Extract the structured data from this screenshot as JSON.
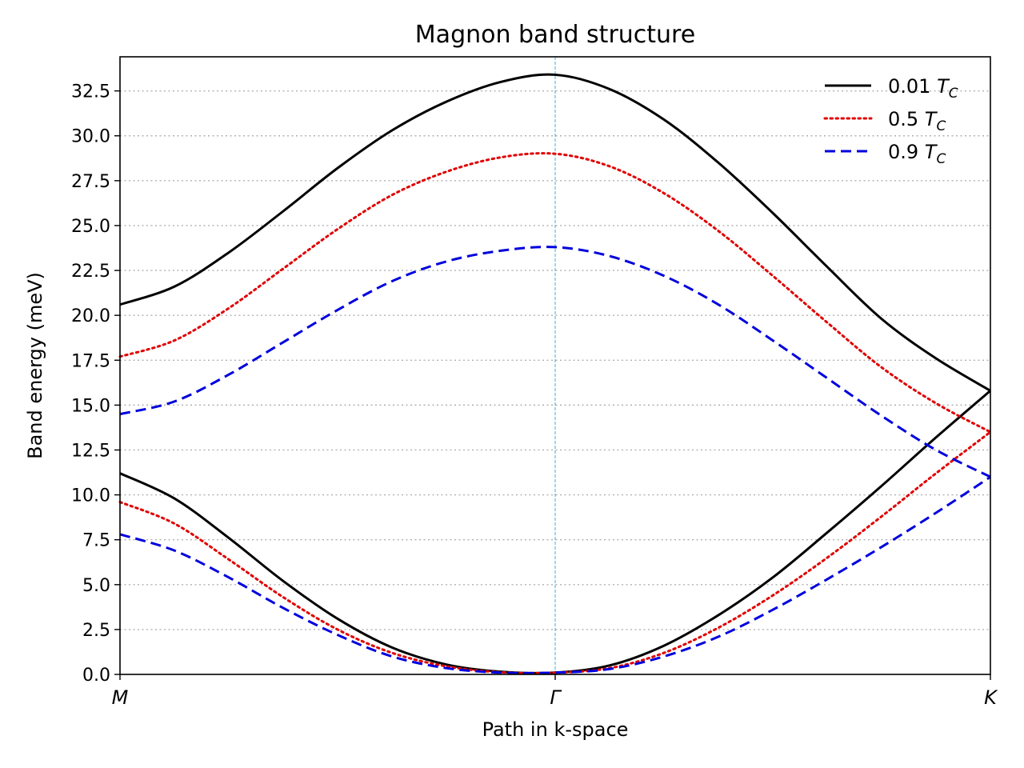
{
  "chart_data": {
    "type": "line",
    "title": "Magnon band structure",
    "xlabel": "Path in k-space",
    "ylabel": "Band energy (meV)",
    "x_ticks": [
      "M",
      "Γ",
      "K"
    ],
    "x": [
      0,
      0.0625,
      0.125,
      0.1875,
      0.25,
      0.3125,
      0.375,
      0.4375,
      0.5,
      0.5625,
      0.625,
      0.6875,
      0.75,
      0.8125,
      0.875,
      0.9375,
      1.0
    ],
    "xlim": [
      0,
      1
    ],
    "ylim": [
      0,
      34.4
    ],
    "yticks": [
      0.0,
      2.5,
      5.0,
      7.5,
      10.0,
      12.5,
      15.0,
      17.5,
      20.0,
      22.5,
      25.0,
      27.5,
      30.0,
      32.5
    ],
    "y_grid": true,
    "grid_style": "dotted",
    "vertical_marker": {
      "x": 0.5,
      "label": "Γ",
      "color": "#5bc0d8"
    },
    "legend_position": "top-right",
    "series": [
      {
        "name": "0.01 T_C",
        "temp_value": "0.01",
        "color": "#000000",
        "style": "solid",
        "band": "upper",
        "values": [
          20.6,
          21.6,
          23.5,
          25.8,
          28.2,
          30.3,
          31.9,
          33.0,
          33.4,
          32.6,
          30.9,
          28.5,
          25.7,
          22.7,
          19.8,
          17.6,
          15.8
        ]
      },
      {
        "name": "0.01 T_C",
        "temp_value": "0.01",
        "color": "#000000",
        "style": "solid",
        "band": "lower",
        "values": [
          11.2,
          9.8,
          7.6,
          5.2,
          3.1,
          1.5,
          0.55,
          0.15,
          0.1,
          0.5,
          1.6,
          3.3,
          5.4,
          7.9,
          10.5,
          13.2,
          15.8
        ]
      },
      {
        "name": "0.5 T_C",
        "temp_value": "0.5",
        "color": "#e00000",
        "style": "dotted",
        "band": "upper",
        "values": [
          17.7,
          18.6,
          20.4,
          22.6,
          24.8,
          26.7,
          28.0,
          28.8,
          29.0,
          28.3,
          26.8,
          24.7,
          22.2,
          19.6,
          17.1,
          15.1,
          13.5
        ]
      },
      {
        "name": "0.5 T_C",
        "temp_value": "0.5",
        "color": "#e00000",
        "style": "dotted",
        "band": "lower",
        "values": [
          9.6,
          8.4,
          6.4,
          4.3,
          2.5,
          1.2,
          0.45,
          0.12,
          0.1,
          0.35,
          1.2,
          2.6,
          4.4,
          6.5,
          8.8,
          11.2,
          13.5
        ]
      },
      {
        "name": "0.9 T_C",
        "temp_value": "0.9",
        "color": "#0000dd",
        "style": "dashed",
        "band": "upper",
        "values": [
          14.5,
          15.2,
          16.7,
          18.5,
          20.3,
          21.9,
          23.0,
          23.6,
          23.8,
          23.3,
          22.2,
          20.6,
          18.6,
          16.5,
          14.4,
          12.5,
          11.0
        ]
      },
      {
        "name": "0.9 T_C",
        "temp_value": "0.9",
        "color": "#0000dd",
        "style": "dashed",
        "band": "lower",
        "values": [
          7.8,
          6.9,
          5.4,
          3.7,
          2.2,
          1.0,
          0.35,
          0.1,
          0.1,
          0.3,
          1.0,
          2.1,
          3.6,
          5.3,
          7.1,
          9.0,
          11.0
        ]
      }
    ],
    "legend": [
      {
        "temp_value": "0.01",
        "color": "#000000",
        "style": "solid"
      },
      {
        "temp_value": "0.5",
        "color": "#e00000",
        "style": "dotted"
      },
      {
        "temp_value": "0.9",
        "color": "#0000dd",
        "style": "dashed"
      }
    ]
  }
}
